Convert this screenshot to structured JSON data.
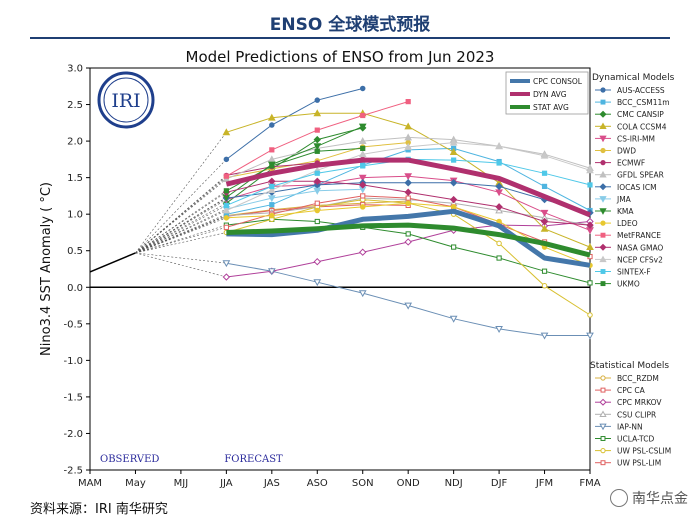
{
  "header": {
    "title": "ENSO 全球模式预报"
  },
  "footer": {
    "source": "资料来源：IRI 南华研究",
    "watermark": "南华点金"
  },
  "chart_data": {
    "type": "line",
    "title": "Model Predictions of ENSO from Jun 2023",
    "xlabel": "",
    "ylabel": "Nino3.4 SST Anomaly ( °C)",
    "categories": [
      "MAM",
      "May",
      "MJJ",
      "JJA",
      "JAS",
      "ASO",
      "SON",
      "OND",
      "NDJ",
      "DJF",
      "JFM",
      "FMA"
    ],
    "ylim": [
      -2.5,
      3.0
    ],
    "yticks": [
      "-2.5",
      "-2.0",
      "-1.5",
      "-1.0",
      "-0.5",
      "0.0",
      "0.5",
      "1.0",
      "1.5",
      "2.0",
      "2.5",
      "3.0"
    ],
    "observed": {
      "x": [
        0,
        1
      ],
      "values": [
        0.21,
        0.47
      ]
    },
    "annotations": {
      "observed": "OBSERVED",
      "forecast": "FORECAST",
      "logo": "IRI"
    },
    "legend_groups": {
      "dynamical": "Dynamical Models",
      "statistical": "Statistical Models"
    },
    "averages": [
      {
        "name": "CPC CONSOL",
        "color": "#4477aa",
        "values": [
          null,
          null,
          null,
          0.73,
          0.72,
          0.78,
          0.93,
          0.97,
          1.04,
          0.84,
          0.4,
          0.3
        ]
      },
      {
        "name": "DYN AVG",
        "color": "#b0306e",
        "values": [
          null,
          null,
          null,
          1.41,
          1.56,
          1.67,
          1.74,
          1.74,
          1.62,
          1.49,
          1.24,
          0.99
        ]
      },
      {
        "name": "STAT AVG",
        "color": "#2e8b2e",
        "values": [
          null,
          null,
          null,
          0.75,
          0.77,
          0.8,
          0.84,
          0.85,
          0.81,
          0.72,
          0.6,
          0.44
        ]
      }
    ],
    "series": [
      {
        "name": "AUS-ACCESS",
        "group": "dyn",
        "color": "#3d6fa8",
        "marker": "circle",
        "filled": true,
        "values": [
          null,
          null,
          null,
          1.75,
          2.22,
          2.56,
          2.72,
          null,
          null,
          null,
          null,
          null
        ]
      },
      {
        "name": "BCC_CSM11m",
        "group": "dyn",
        "color": "#4fb5e0",
        "marker": "square",
        "filled": true,
        "values": [
          null,
          null,
          null,
          1.0,
          1.13,
          1.4,
          1.67,
          1.88,
          1.9,
          1.72,
          1.38,
          1.05
        ]
      },
      {
        "name": "CMC CANSIP",
        "group": "dyn",
        "color": "#2e8b2e",
        "marker": "diamond",
        "filled": true,
        "values": [
          null,
          null,
          null,
          1.15,
          1.62,
          2.02,
          2.18,
          null,
          null,
          null,
          null,
          null
        ]
      },
      {
        "name": "COLA CCSM4",
        "group": "dyn",
        "color": "#c8b428",
        "marker": "tri-up",
        "filled": true,
        "values": [
          null,
          null,
          null,
          2.12,
          2.32,
          2.38,
          2.38,
          2.2,
          1.85,
          1.43,
          0.8,
          0.55
        ]
      },
      {
        "name": "CS-IRI-MM",
        "group": "dyn",
        "color": "#d94e8a",
        "marker": "tri-down",
        "filled": true,
        "values": [
          null,
          null,
          null,
          1.2,
          1.38,
          1.4,
          1.5,
          1.52,
          1.46,
          1.3,
          1.02,
          0.78
        ]
      },
      {
        "name": "DWD",
        "group": "dyn",
        "color": "#e0c040",
        "marker": "circle",
        "filled": true,
        "values": [
          null,
          null,
          null,
          1.5,
          1.62,
          1.73,
          1.92,
          1.98,
          null,
          null,
          null,
          null
        ]
      },
      {
        "name": "ECMWF",
        "group": "dyn",
        "color": "#b0306e",
        "marker": "circle",
        "filled": true,
        "values": [
          null,
          null,
          null,
          1.53,
          1.65,
          1.7,
          1.75,
          null,
          null,
          null,
          null,
          null
        ]
      },
      {
        "name": "GFDL SPEAR",
        "group": "dyn",
        "color": "#c0c0c0",
        "marker": "tri-up",
        "filled": true,
        "values": [
          null,
          null,
          null,
          1.48,
          1.75,
          1.9,
          2.0,
          2.05,
          2.02,
          1.93,
          1.82,
          1.63
        ]
      },
      {
        "name": "IOCAS ICM",
        "group": "dyn",
        "color": "#3d6fa8",
        "marker": "diamond",
        "filled": true,
        "values": [
          null,
          null,
          null,
          1.22,
          1.3,
          1.4,
          1.43,
          1.43,
          1.43,
          1.38,
          1.2,
          1.02
        ]
      },
      {
        "name": "JMA",
        "group": "dyn",
        "color": "#88cce8",
        "marker": "tri-down",
        "filled": true,
        "values": [
          null,
          null,
          null,
          1.07,
          1.22,
          1.32,
          1.34,
          null,
          null,
          null,
          null,
          null
        ]
      },
      {
        "name": "KMA",
        "group": "dyn",
        "color": "#2e8b2e",
        "marker": "tri-down",
        "filled": true,
        "values": [
          null,
          null,
          null,
          1.23,
          1.68,
          1.93,
          2.2,
          null,
          null,
          null,
          null,
          null
        ]
      },
      {
        "name": "LDEO",
        "group": "dyn",
        "color": "#e8c830",
        "marker": "circle",
        "filled": true,
        "values": [
          null,
          null,
          null,
          0.95,
          0.98,
          1.05,
          1.1,
          1.15,
          1.1,
          0.9,
          0.55,
          0.3
        ]
      },
      {
        "name": "MetFRANCE",
        "group": "dyn",
        "color": "#f06080",
        "marker": "square",
        "filled": true,
        "values": [
          null,
          null,
          null,
          1.52,
          1.88,
          2.15,
          2.35,
          2.54,
          null,
          null,
          null,
          null
        ]
      },
      {
        "name": "NASA GMAO",
        "group": "dyn",
        "color": "#b0306e",
        "marker": "diamond",
        "filled": true,
        "values": [
          null,
          null,
          null,
          1.3,
          1.45,
          1.45,
          1.4,
          1.3,
          1.2,
          1.1,
          0.9,
          0.85
        ]
      },
      {
        "name": "NCEP CFSv2",
        "group": "dyn",
        "color": "#c8c8c8",
        "marker": "tri-up",
        "filled": true,
        "values": [
          null,
          null,
          null,
          1.05,
          1.33,
          1.6,
          1.82,
          1.92,
          1.98,
          1.93,
          1.8,
          1.6
        ]
      },
      {
        "name": "SINTEX-F",
        "group": "dyn",
        "color": "#4fc8e8",
        "marker": "square",
        "filled": true,
        "values": [
          null,
          null,
          null,
          1.12,
          1.38,
          1.56,
          1.66,
          1.75,
          1.74,
          1.7,
          1.56,
          1.4
        ]
      },
      {
        "name": "UKMO",
        "group": "dyn",
        "color": "#2e8b2e",
        "marker": "square",
        "filled": true,
        "values": [
          null,
          null,
          null,
          1.32,
          1.66,
          1.86,
          1.9,
          null,
          null,
          null,
          null,
          null
        ]
      },
      {
        "name": "BCC_RZDM",
        "group": "stat",
        "color": "#d8b040",
        "marker": "circle",
        "filled": false,
        "values": [
          null,
          null,
          null,
          0.98,
          1.06,
          1.12,
          1.15,
          1.18,
          null,
          null,
          null,
          null
        ]
      },
      {
        "name": "CPC CA",
        "group": "stat",
        "color": "#e06060",
        "marker": "square",
        "filled": false,
        "values": [
          null,
          null,
          null,
          0.97,
          1.05,
          1.1,
          1.13,
          1.12,
          null,
          null,
          null,
          null
        ]
      },
      {
        "name": "CPC MRKOV",
        "group": "stat",
        "color": "#b0409a",
        "marker": "diamond",
        "filled": false,
        "values": [
          null,
          null,
          null,
          0.14,
          0.22,
          0.35,
          0.48,
          0.62,
          0.78,
          0.85,
          0.84,
          0.9
        ]
      },
      {
        "name": "CSU CLIPR",
        "group": "stat",
        "color": "#b0b0b0",
        "marker": "tri-up",
        "filled": false,
        "values": [
          null,
          null,
          null,
          0.98,
          1.02,
          1.1,
          1.22,
          1.2,
          1.15,
          1.05,
          0.95,
          0.85
        ]
      },
      {
        "name": "IAP-NN",
        "group": "stat",
        "color": "#6b8fb5",
        "marker": "tri-down",
        "filled": false,
        "values": [
          null,
          null,
          null,
          0.33,
          0.22,
          0.07,
          -0.08,
          -0.25,
          -0.43,
          -0.57,
          -0.66,
          -0.66
        ]
      },
      {
        "name": "UCLA-TCD",
        "group": "stat",
        "color": "#2e8b2e",
        "marker": "square",
        "filled": false,
        "values": [
          null,
          null,
          null,
          0.85,
          0.93,
          0.9,
          0.82,
          0.73,
          0.55,
          0.4,
          0.22,
          0.06
        ]
      },
      {
        "name": "UW PSL-CSLIM",
        "group": "stat",
        "color": "#d8c030",
        "marker": "circle",
        "filled": false,
        "values": [
          null,
          null,
          null,
          0.75,
          0.93,
          1.1,
          1.2,
          1.15,
          1.0,
          0.6,
          0.02,
          -0.38
        ]
      },
      {
        "name": "UW PSL-LIM",
        "group": "stat",
        "color": "#e06060",
        "marker": "square",
        "filled": false,
        "values": [
          null,
          null,
          null,
          0.82,
          1.0,
          1.15,
          1.25,
          1.22,
          1.1,
          0.86,
          0.62,
          0.42
        ]
      }
    ]
  }
}
